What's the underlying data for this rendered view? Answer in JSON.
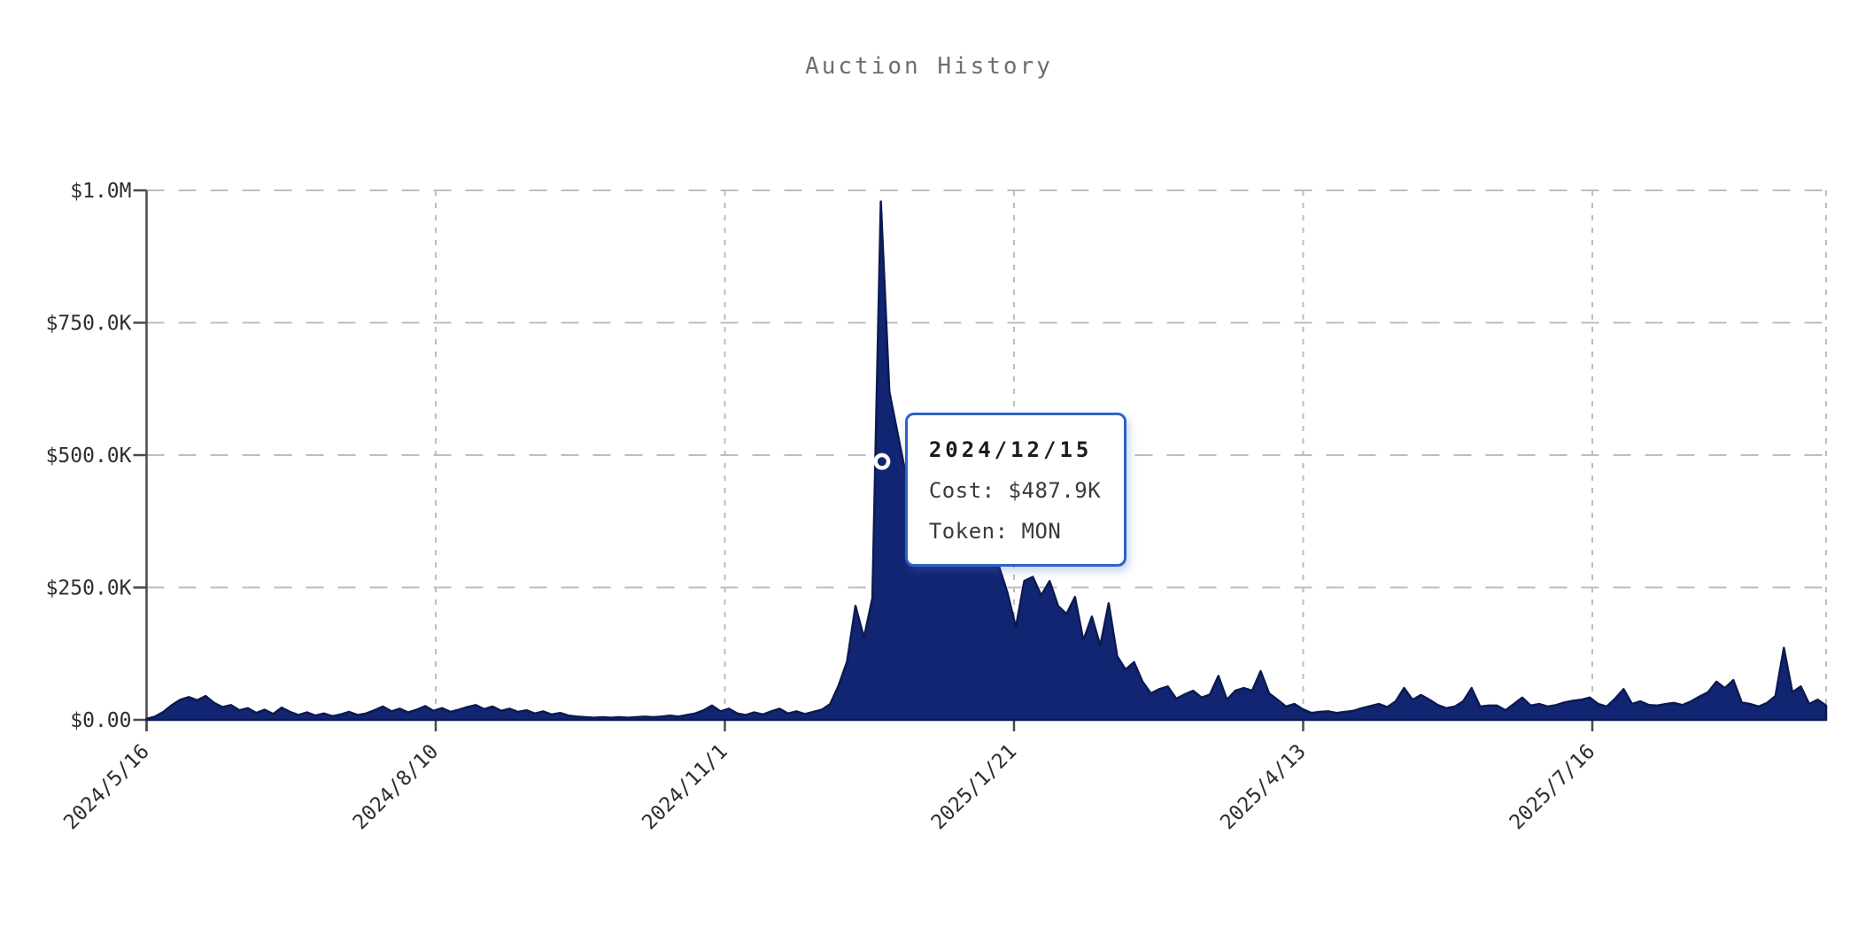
{
  "chart_data": {
    "type": "area",
    "title": "Auction History",
    "xlabel": "",
    "ylabel": "",
    "x_tick_labels": [
      "2024/5/16",
      "2024/8/10",
      "2024/11/1",
      "2025/1/21",
      "2025/4/13",
      "2025/7/16"
    ],
    "y_tick_labels": [
      "$1.0M",
      "$750.0K",
      "$500.0K",
      "$250.0K",
      "$0.00"
    ],
    "y_tick_values_k": [
      1000,
      750,
      500,
      250,
      0
    ],
    "ylim_k": [
      0,
      1000
    ],
    "grid": "dashed, both axes, light gray",
    "legend": "none",
    "x_labels_rotation_deg": -45,
    "series": [
      {
        "name": "Cost",
        "unit": "USD thousands",
        "values_k": [
          2,
          6,
          15,
          28,
          38,
          43,
          37,
          45,
          32,
          24,
          28,
          18,
          22,
          13,
          19,
          11,
          23,
          15,
          9,
          14,
          8,
          12,
          7,
          10,
          15,
          9,
          12,
          18,
          25,
          16,
          21,
          14,
          19,
          26,
          17,
          22,
          15,
          19,
          24,
          28,
          20,
          25,
          17,
          21,
          15,
          18,
          12,
          16,
          10,
          13,
          8,
          6,
          5,
          4,
          5,
          4,
          5,
          4,
          5,
          6,
          5,
          6,
          8,
          6,
          9,
          12,
          18,
          27,
          16,
          21,
          12,
          9,
          14,
          10,
          16,
          21,
          12,
          16,
          11,
          15,
          19,
          30,
          65,
          110,
          215,
          155,
          230,
          979,
          620,
          540,
          460,
          430,
          410,
          380,
          350,
          400,
          330,
          300,
          310,
          295,
          300,
          290,
          240,
          175,
          262,
          270,
          235,
          262,
          215,
          200,
          232,
          150,
          195,
          140,
          220,
          120,
          95,
          109,
          72,
          50,
          58,
          63,
          40,
          48,
          55,
          42,
          48,
          83,
          38,
          55,
          60,
          55,
          92,
          50,
          38,
          25,
          30,
          20,
          13,
          15,
          16,
          13,
          15,
          17,
          22,
          26,
          30,
          24,
          35,
          60,
          38,
          47,
          38,
          28,
          22,
          25,
          35,
          60,
          25,
          27,
          27,
          18,
          30,
          42,
          27,
          30,
          25,
          28,
          33,
          36,
          38,
          42,
          30,
          25,
          40,
          58,
          30,
          35,
          28,
          27,
          30,
          32,
          28,
          35,
          44,
          52,
          72,
          60,
          75,
          33,
          30,
          25,
          32,
          45,
          136,
          52,
          63,
          30,
          38,
          27
        ]
      }
    ],
    "colors": {
      "area_fill": "#122572",
      "area_stroke": "#0c1a52",
      "grid": "#bdbdbd",
      "axis": "#4a4a4a",
      "tick_text": "#2e2e2e",
      "title_text": "#6e6e6e",
      "tooltip_border": "#2c64c4",
      "tooltip_bg": "#ffffff",
      "marker_ring": "#ffffff",
      "marker_center": "#122572"
    }
  },
  "tooltip": {
    "date": "2024/12/15",
    "cost": "Cost: $487.9K",
    "token": "Token: MON",
    "value_k": 487.9,
    "token_value": "MON"
  }
}
